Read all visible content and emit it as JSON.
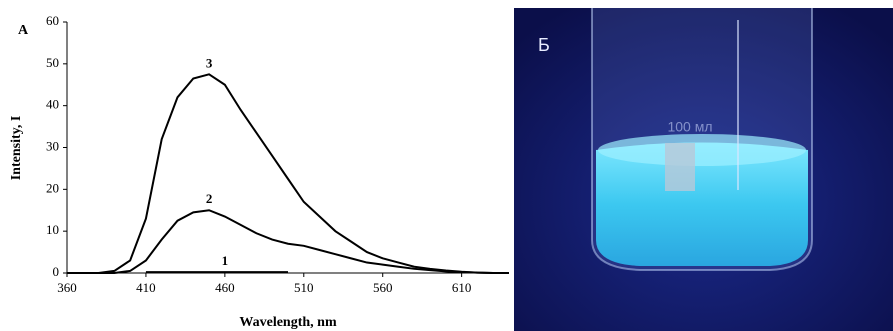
{
  "chart_data": {
    "type": "line",
    "panel_label": "A",
    "x_label": "Wavelength, nm",
    "y_label": "Intensity, I",
    "x": [
      360,
      370,
      380,
      390,
      400,
      410,
      420,
      430,
      440,
      450,
      460,
      470,
      480,
      490,
      500,
      510,
      520,
      530,
      540,
      550,
      560,
      570,
      580,
      590,
      600,
      610,
      620,
      630,
      640
    ],
    "series": [
      {
        "name": "1",
        "color": "#000000",
        "values": [
          null,
          null,
          null,
          null,
          null,
          0.2,
          0.2,
          0.2,
          0.2,
          0.2,
          0.2,
          0.2,
          0.2,
          0.2,
          0.2,
          null,
          null,
          null,
          null,
          null,
          null,
          null,
          null,
          null,
          null,
          null,
          null,
          null,
          null
        ]
      },
      {
        "name": "2",
        "color": "#000000",
        "values": [
          0,
          0,
          0,
          0,
          0.5,
          3,
          8,
          12.5,
          14.5,
          15,
          13.5,
          11.5,
          9.5,
          8,
          7,
          6.5,
          5.5,
          4.5,
          3.5,
          2.5,
          2,
          1.5,
          1,
          0.7,
          0.4,
          0.2,
          0.1,
          0,
          0
        ]
      },
      {
        "name": "3",
        "color": "#000000",
        "values": [
          0,
          0,
          0,
          0.5,
          3,
          13,
          32,
          42,
          46.5,
          47.5,
          45,
          39,
          33.5,
          28,
          22.5,
          17,
          13.5,
          10,
          7.5,
          5,
          3.5,
          2.5,
          1.5,
          1,
          0.6,
          0.3,
          0.1,
          0,
          0
        ]
      }
    ],
    "xlim": [
      360,
      640
    ],
    "xticks": [
      360,
      410,
      460,
      510,
      560,
      610
    ],
    "ylim": [
      0,
      60
    ],
    "yticks": [
      0,
      10,
      20,
      30,
      40,
      50,
      60
    ]
  },
  "photo": {
    "label": "Б",
    "beaker_marking": "100 мл"
  }
}
